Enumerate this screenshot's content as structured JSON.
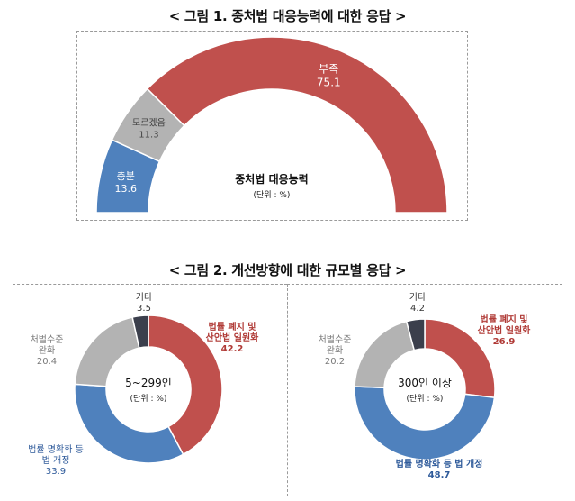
{
  "figure1": {
    "title": "< 그림 1. 중처법 대응능력에 대한 응답 >",
    "center_title": "중처법 대응능력",
    "unit": "(단위 : %)"
  },
  "figure2": {
    "title": "< 그림 2. 개선방향에 대한 규모별 응답 >",
    "unit": "(단위 : %)"
  },
  "colors": {
    "red": "#c0504d",
    "blue": "#4f81bd",
    "gray": "#b3b3b3",
    "dark": "#3b3f4c",
    "red_text": "#b03a36",
    "blue_text": "#2e5a9a",
    "gray_text": "#7a7a7a"
  },
  "chart_data": [
    {
      "type": "pie",
      "subtype": "semicircle-donut",
      "title": "중처법 대응능력",
      "unit": "%",
      "slices": [
        {
          "label": "충분",
          "value": 13.6,
          "color": "#4f81bd"
        },
        {
          "label": "모르겠음",
          "value": 11.3,
          "color": "#b3b3b3"
        },
        {
          "label": "부족",
          "value": 75.1,
          "color": "#c0504d"
        }
      ]
    },
    {
      "type": "pie",
      "subtype": "donut",
      "title": "5~299인",
      "unit": "%",
      "slices": [
        {
          "label": "법률 폐지 및 산안법 일원화",
          "value": 42.2,
          "color": "#c0504d"
        },
        {
          "label": "법률 명확화 등 법 개정",
          "value": 33.9,
          "color": "#4f81bd"
        },
        {
          "label": "처벌수준 완화",
          "value": 20.4,
          "color": "#b3b3b3"
        },
        {
          "label": "기타",
          "value": 3.5,
          "color": "#3b3f4c"
        }
      ]
    },
    {
      "type": "pie",
      "subtype": "donut",
      "title": "300인 이상",
      "unit": "%",
      "slices": [
        {
          "label": "법률 폐지 및 산안법 일원화",
          "value": 26.9,
          "color": "#c0504d"
        },
        {
          "label": "법률 명확화 등 법 개정",
          "value": 48.7,
          "color": "#4f81bd"
        },
        {
          "label": "처벌수준 완화",
          "value": 20.2,
          "color": "#b3b3b3"
        },
        {
          "label": "기타",
          "value": 4.2,
          "color": "#3b3f4c"
        }
      ]
    }
  ]
}
